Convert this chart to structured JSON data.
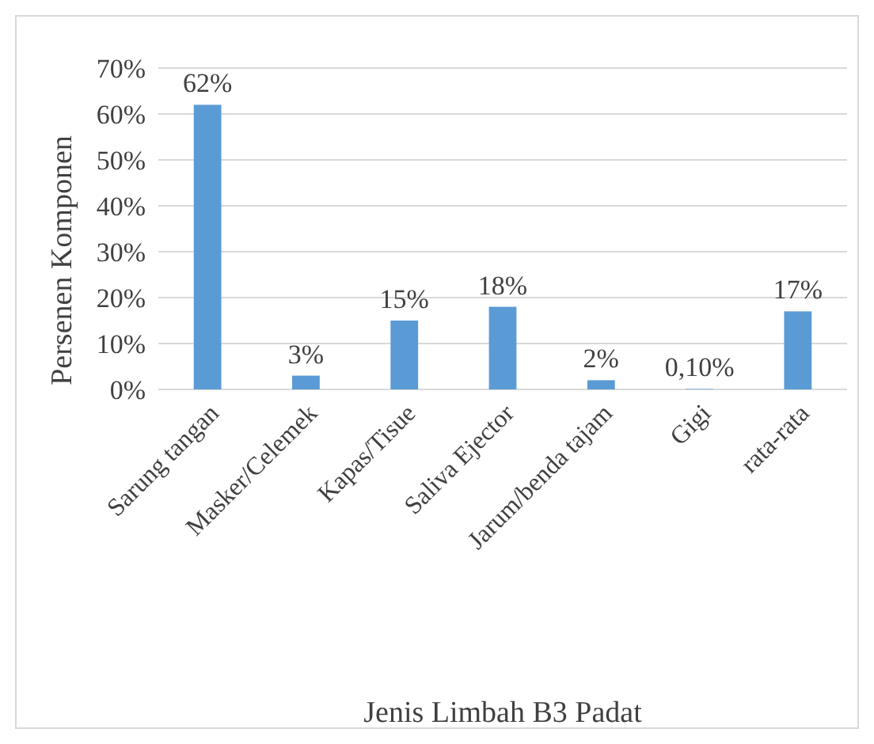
{
  "chart_data": {
    "type": "bar",
    "xlabel": "Jenis Limbah B3 Padat",
    "ylabel": "Persenen Komponen",
    "categories": [
      "Sarung tangan",
      "Masker/Celemek",
      "Kapas/Tisue",
      "Saliva Ejector",
      "Jarum/benda tajam",
      "Gigi",
      "rata-rata"
    ],
    "values": [
      62,
      3,
      15,
      18,
      2,
      0.1,
      17
    ],
    "value_labels": [
      "62%",
      "3%",
      "15%",
      "18%",
      "2%",
      "0,10%",
      "17%"
    ],
    "color": "#5b9bd5",
    "ylim": [
      0,
      70
    ],
    "yticks": [
      {
        "value": 0,
        "label": "0%"
      },
      {
        "value": 10,
        "label": "10%"
      },
      {
        "value": 20,
        "label": "20%"
      },
      {
        "value": 30,
        "label": "30%"
      },
      {
        "value": 40,
        "label": "40%"
      },
      {
        "value": 50,
        "label": "50%"
      },
      {
        "value": 60,
        "label": "60%"
      },
      {
        "value": 70,
        "label": "70%"
      }
    ],
    "grid": "y"
  }
}
